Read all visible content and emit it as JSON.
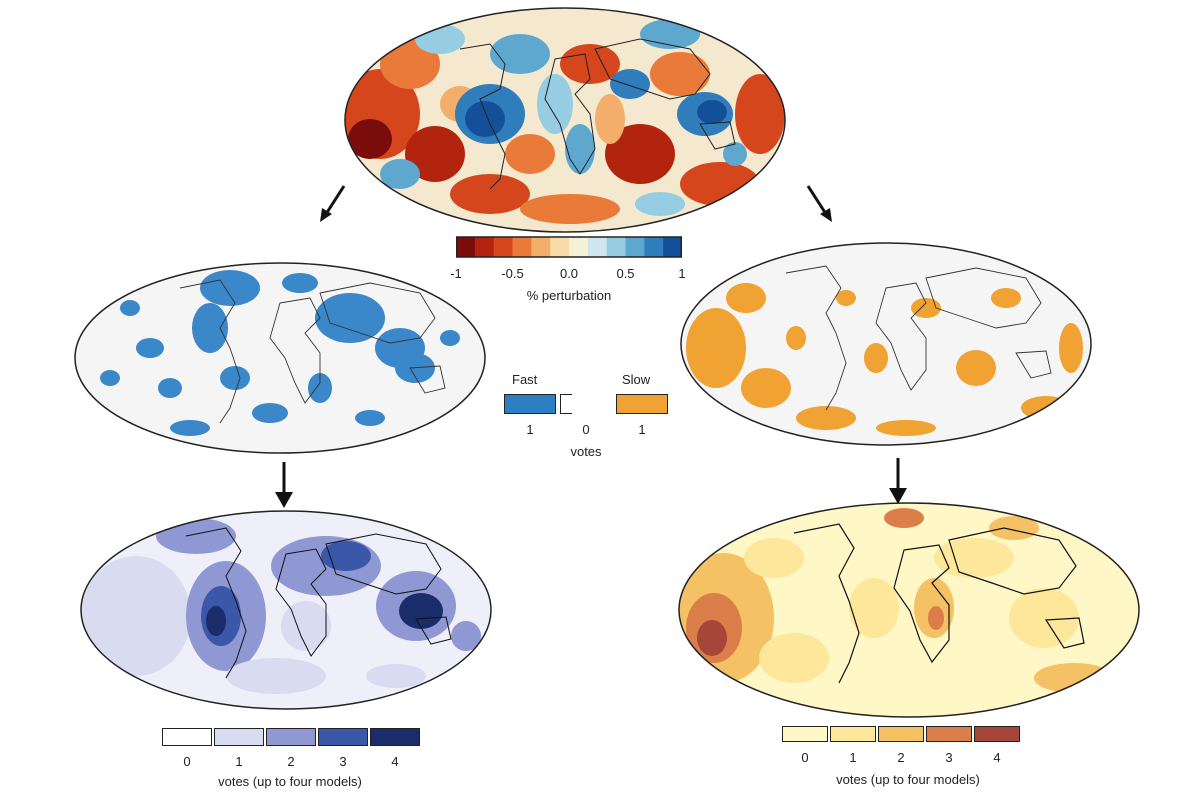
{
  "top_colorbar": {
    "colors": [
      "#7a0c0c",
      "#b2240e",
      "#d6461c",
      "#ea7a3a",
      "#f3ae6c",
      "#f8dba8",
      "#f4f1d8",
      "#cfe6ee",
      "#97cde2",
      "#5ea8d0",
      "#2f7dbb",
      "#14509a"
    ],
    "ticks": [
      "-1",
      "-0.5",
      "0.0",
      "0.5",
      "1"
    ],
    "label": "% perturbation"
  },
  "vote_key": {
    "fast_label": "Fast",
    "slow_label": "Slow",
    "fast_value": "1",
    "zero_value": "0",
    "slow_value": "1",
    "label": "votes",
    "fast_color": "#2b7fc2",
    "slow_color": "#f0a233"
  },
  "bottom_left_colorbar": {
    "colors": [
      "#ffffff",
      "#d9dcf0",
      "#8f98d2",
      "#3a57a8",
      "#1a2c6a"
    ],
    "ticks": [
      "0",
      "1",
      "2",
      "3",
      "4"
    ],
    "label": "votes (up to four models)"
  },
  "bottom_right_colorbar": {
    "colors": [
      "#fff7c6",
      "#fde79a",
      "#f5c165",
      "#dc7e4a",
      "#a6453a"
    ],
    "ticks": [
      "0",
      "1",
      "2",
      "3",
      "4"
    ],
    "label": "votes (up to four models)"
  }
}
